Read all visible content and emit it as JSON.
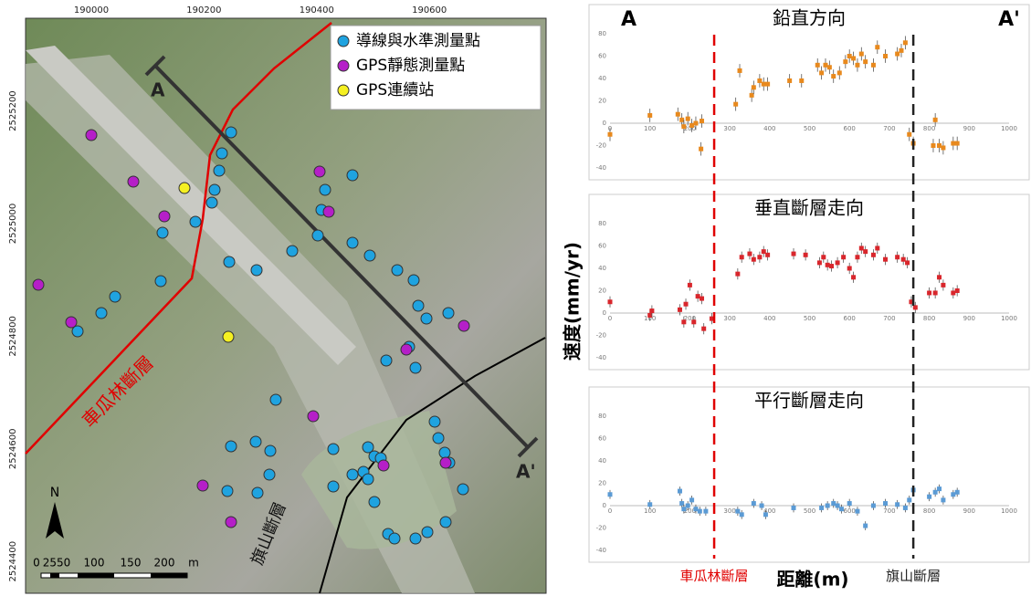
{
  "chart_data": [
    {
      "type": "scatter",
      "title": "鉛直方向",
      "color": "#e8891d",
      "error": 6,
      "x": [
        0,
        100,
        170,
        180,
        185,
        195,
        205,
        215,
        230,
        228,
        315,
        325,
        355,
        360,
        375,
        385,
        395,
        450,
        480,
        520,
        530,
        540,
        550,
        560,
        575,
        590,
        600,
        610,
        620,
        630,
        640,
        660,
        670,
        690,
        720,
        730,
        740,
        750,
        760,
        810,
        815,
        825,
        835,
        860,
        870
      ],
      "values": [
        -10,
        7,
        8,
        3,
        -3,
        4,
        -2,
        0,
        2,
        -23,
        17,
        47,
        25,
        32,
        38,
        35,
        35,
        38,
        38,
        52,
        45,
        52,
        50,
        42,
        45,
        55,
        60,
        58,
        52,
        62,
        55,
        52,
        68,
        60,
        62,
        65,
        72,
        -10,
        -18,
        -20,
        3,
        -20,
        -22,
        -18,
        -18
      ],
      "xlim": [
        0,
        1000
      ],
      "ylim": [
        -40,
        80
      ],
      "xticks": [
        0,
        100,
        200,
        300,
        400,
        500,
        600,
        700,
        800,
        900,
        1000
      ],
      "yticks": [
        -40,
        -20,
        0,
        20,
        40,
        60,
        80
      ]
    },
    {
      "type": "scatter",
      "title": "垂直斷層走向",
      "color": "#d9262c",
      "error": 5,
      "x": [
        0,
        100,
        105,
        175,
        185,
        190,
        200,
        210,
        220,
        230,
        235,
        255,
        320,
        330,
        350,
        360,
        375,
        385,
        395,
        460,
        490,
        525,
        535,
        545,
        555,
        570,
        585,
        600,
        610,
        620,
        630,
        640,
        660,
        670,
        690,
        720,
        735,
        745,
        755,
        765,
        800,
        815,
        825,
        835,
        860,
        870
      ],
      "values": [
        10,
        -2,
        2,
        3,
        -8,
        8,
        25,
        -8,
        15,
        13,
        -14,
        -5,
        35,
        50,
        53,
        48,
        50,
        55,
        52,
        53,
        52,
        45,
        50,
        43,
        42,
        45,
        50,
        40,
        32,
        50,
        58,
        55,
        52,
        58,
        48,
        50,
        48,
        45,
        10,
        5,
        18,
        18,
        32,
        25,
        18,
        20
      ],
      "xlim": [
        0,
        1000
      ],
      "ylim": [
        -40,
        80
      ],
      "xticks": [
        0,
        100,
        200,
        300,
        400,
        500,
        600,
        700,
        800,
        900,
        1000
      ],
      "yticks": [
        -40,
        -20,
        0,
        20,
        40,
        60,
        80
      ]
    },
    {
      "type": "scatter",
      "title": "平行斷層走向",
      "color": "#5b9bd5",
      "error": 4,
      "x": [
        0,
        100,
        175,
        180,
        185,
        195,
        205,
        215,
        225,
        240,
        320,
        330,
        360,
        380,
        390,
        460,
        530,
        545,
        560,
        570,
        580,
        600,
        620,
        640,
        660,
        690,
        720,
        740,
        750,
        760,
        800,
        815,
        825,
        835,
        860,
        870
      ],
      "values": [
        10,
        1,
        13,
        2,
        -3,
        0,
        5,
        -3,
        -5,
        -5,
        -5,
        -8,
        2,
        0,
        -8,
        -2,
        -2,
        0,
        2,
        0,
        -3,
        2,
        -5,
        -18,
        0,
        2,
        1,
        -2,
        5,
        14,
        8,
        12,
        15,
        5,
        10,
        12
      ],
      "xlim": [
        0,
        1000
      ],
      "ylim": [
        -40,
        80
      ],
      "xticks": [
        0,
        100,
        200,
        300,
        400,
        500,
        600,
        700,
        800,
        900,
        1000
      ],
      "yticks": [
        -40,
        -20,
        0,
        20,
        40,
        60,
        80
      ]
    }
  ],
  "shared": {
    "y_label": "速度(mm/yr)",
    "x_label": "距離(m)",
    "profile_start": "A",
    "profile_end": "A'",
    "faults": [
      {
        "name": "車瓜林斷層",
        "x": 261,
        "color": "#e00000"
      },
      {
        "name": "旗山斷層",
        "x": 760,
        "color": "#222222"
      }
    ]
  },
  "map": {
    "xticks": [
      190000,
      190200,
      190400,
      190600
    ],
    "yticks": [
      2525200,
      2525000,
      2524800,
      2524600,
      2524400
    ],
    "legend": [
      "導線與水準測量點",
      "GPS靜態測量點",
      "GPS連續站"
    ],
    "profile_start": "A",
    "profile_end": "A'",
    "fault_red": "車瓜林斷層",
    "fault_black": "旗山斷層",
    "north": "N",
    "scale_labels": [
      "0",
      "2550",
      "100",
      "150",
      "200",
      "m"
    ]
  }
}
